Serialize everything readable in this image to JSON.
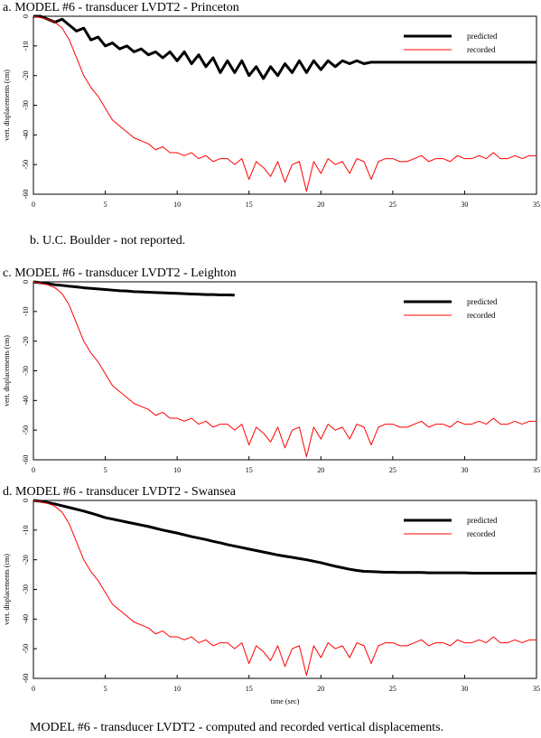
{
  "chart_data": [
    {
      "type": "line",
      "title": "a. MODEL #6 - transducer LVDT2 - Princeton",
      "ylabel": "vert. displacements (cm)",
      "xlim": [
        0,
        35
      ],
      "xticks": [
        0,
        5,
        10,
        15,
        20,
        25,
        30,
        35
      ],
      "ylim": [
        -60,
        0
      ],
      "yticks": [
        0,
        -10,
        -20,
        -30,
        -40,
        -50,
        -60
      ],
      "legend": "upper right",
      "x": [
        0,
        0.5,
        1,
        1.5,
        2,
        2.5,
        3,
        3.5,
        4,
        4.5,
        5,
        5.5,
        6,
        6.5,
        7,
        7.5,
        8,
        8.5,
        9,
        9.5,
        10,
        10.5,
        11,
        11.5,
        12,
        12.5,
        13,
        13.5,
        14,
        14.5,
        15,
        15.5,
        16,
        16.5,
        17,
        17.5,
        18,
        18.5,
        19,
        19.5,
        20,
        20.5,
        21,
        21.5,
        22,
        22.5,
        23,
        23.5,
        24,
        24.5,
        25,
        25.5,
        26,
        26.5,
        27,
        27.5,
        28,
        28.5,
        29,
        29.5,
        30,
        30.5,
        31,
        31.5,
        32,
        32.5,
        33,
        33.5,
        34,
        34.5,
        35
      ],
      "series": [
        {
          "name": "predicted",
          "color": "#000000",
          "linewidth": 3,
          "values": [
            0,
            0,
            -1,
            -2,
            -1,
            -3,
            -5,
            -4,
            -8,
            -7,
            -10,
            -9,
            -11,
            -10,
            -12,
            -11,
            -13,
            -12,
            -14,
            -12,
            -15,
            -12,
            -16,
            -13,
            -17,
            -14,
            -19,
            -15,
            -19,
            -15,
            -20,
            -17,
            -21,
            -17,
            -20,
            -16,
            -19,
            -15,
            -19,
            -15,
            -18,
            -15,
            -17,
            -15,
            -16,
            -15,
            -16,
            -15.5,
            -15.5,
            -15.5,
            -15.5,
            -15.5,
            -15.5,
            -15.5,
            -15.5,
            -15.5,
            -15.5,
            -15.5,
            -15.5,
            -15.5,
            -15.5,
            -15.5,
            -15.5,
            -15.5,
            -15.5,
            -15.5,
            -15.5,
            -15.5,
            -15.5,
            -15.5,
            -15.5
          ]
        },
        {
          "name": "recorded",
          "color": "#ff0000",
          "linewidth": 1,
          "values": [
            0,
            -0.5,
            -1,
            -2,
            -4,
            -8,
            -14,
            -20,
            -24,
            -27,
            -31,
            -35,
            -37,
            -39,
            -41,
            -42,
            -43,
            -45,
            -44,
            -46,
            -46,
            -47,
            -46,
            -48,
            -47,
            -49,
            -48,
            -48,
            -50,
            -48,
            -55,
            -49,
            -51,
            -54,
            -49,
            -56,
            -50,
            -49,
            -59,
            -49,
            -53,
            -48,
            -50,
            -49,
            -53,
            -48,
            -49,
            -55,
            -49,
            -48,
            -48,
            -49,
            -49,
            -48,
            -47,
            -49,
            -48,
            -48,
            -49,
            -47,
            -48,
            -48,
            -47,
            -48,
            -46,
            -48,
            -48,
            -47,
            -48,
            -47,
            -47
          ]
        }
      ]
    },
    {
      "type": "line",
      "title": "c. MODEL #6 - transducer LVDT2 - Leighton",
      "ylabel": "vert. displacements (cm)",
      "xlim": [
        0,
        35
      ],
      "xticks": [
        0,
        5,
        10,
        15,
        20,
        25,
        30,
        35
      ],
      "ylim": [
        -60,
        0
      ],
      "yticks": [
        0,
        -10,
        -20,
        -30,
        -40,
        -50,
        -60
      ],
      "legend": "upper right",
      "x": [
        0,
        0.5,
        1,
        1.5,
        2,
        2.5,
        3,
        3.5,
        4,
        4.5,
        5,
        5.5,
        6,
        6.5,
        7,
        7.5,
        8,
        8.5,
        9,
        9.5,
        10,
        10.5,
        11,
        11.5,
        12,
        12.5,
        13,
        13.5,
        14,
        14.5,
        15,
        15.5,
        16,
        16.5,
        17,
        17.5,
        18,
        18.5,
        19,
        19.5,
        20,
        20.5,
        21,
        21.5,
        22,
        22.5,
        23,
        23.5,
        24,
        24.5,
        25,
        25.5,
        26,
        26.5,
        27,
        27.5,
        28,
        28.5,
        29,
        29.5,
        30,
        30.5,
        31,
        31.5,
        32,
        32.5,
        33,
        33.5,
        34,
        34.5,
        35
      ],
      "series": [
        {
          "name": "predicted",
          "color": "#000000",
          "linewidth": 3,
          "values": [
            0,
            -0.3,
            -0.6,
            -1,
            -1.2,
            -1.5,
            -1.7,
            -2,
            -2.2,
            -2.4,
            -2.6,
            -2.8,
            -3,
            -3.1,
            -3.3,
            -3.4,
            -3.5,
            -3.6,
            -3.7,
            -3.8,
            -3.9,
            -4,
            -4.1,
            -4.2,
            -4.3,
            -4.3,
            -4.4,
            -4.4,
            -4.5,
            null,
            null,
            null,
            null,
            null,
            null,
            null,
            null,
            null,
            null,
            null,
            null,
            null,
            null,
            null,
            null,
            null,
            null,
            null,
            null,
            null,
            null,
            null,
            null,
            null,
            null,
            null,
            null,
            null,
            null,
            null,
            null,
            null,
            null,
            null,
            null,
            null,
            null,
            null,
            null,
            null,
            null
          ]
        },
        {
          "name": "recorded",
          "color": "#ff0000",
          "linewidth": 1,
          "values": [
            0,
            -0.5,
            -1,
            -2,
            -4,
            -8,
            -14,
            -20,
            -24,
            -27,
            -31,
            -35,
            -37,
            -39,
            -41,
            -42,
            -43,
            -45,
            -44,
            -46,
            -46,
            -47,
            -46,
            -48,
            -47,
            -49,
            -48,
            -48,
            -50,
            -48,
            -55,
            -49,
            -51,
            -54,
            -49,
            -56,
            -50,
            -49,
            -59,
            -49,
            -53,
            -48,
            -50,
            -49,
            -53,
            -48,
            -49,
            -55,
            -49,
            -48,
            -48,
            -49,
            -49,
            -48,
            -47,
            -49,
            -48,
            -48,
            -49,
            -47,
            -48,
            -48,
            -47,
            -48,
            -46,
            -48,
            -48,
            -47,
            -48,
            -47,
            -47
          ]
        }
      ]
    },
    {
      "type": "line",
      "title": "d. MODEL #6 - transducer LVDT2 - Swansea",
      "ylabel": "vert. displacements (cm)",
      "xlabel": "time (sec)",
      "xlim": [
        0,
        35
      ],
      "xticks": [
        0,
        5,
        10,
        15,
        20,
        25,
        30,
        35
      ],
      "ylim": [
        -60,
        0
      ],
      "yticks": [
        0,
        -10,
        -20,
        -30,
        -40,
        -50,
        -60
      ],
      "legend": "upper right",
      "x": [
        0,
        0.5,
        1,
        1.5,
        2,
        2.5,
        3,
        3.5,
        4,
        4.5,
        5,
        5.5,
        6,
        6.5,
        7,
        7.5,
        8,
        8.5,
        9,
        9.5,
        10,
        10.5,
        11,
        11.5,
        12,
        12.5,
        13,
        13.5,
        14,
        14.5,
        15,
        15.5,
        16,
        16.5,
        17,
        17.5,
        18,
        18.5,
        19,
        19.5,
        20,
        20.5,
        21,
        21.5,
        22,
        22.5,
        23,
        23.5,
        24,
        24.5,
        25,
        25.5,
        26,
        26.5,
        27,
        27.5,
        28,
        28.5,
        29,
        29.5,
        30,
        30.5,
        31,
        31.5,
        32,
        32.5,
        33,
        33.5,
        34,
        34.5,
        35
      ],
      "series": [
        {
          "name": "predicted",
          "color": "#000000",
          "linewidth": 3,
          "values": [
            0,
            -0.3,
            -0.7,
            -1.2,
            -1.8,
            -2.4,
            -3,
            -3.6,
            -4.3,
            -5,
            -5.8,
            -6.3,
            -6.8,
            -7.3,
            -7.8,
            -8.3,
            -8.8,
            -9.4,
            -10,
            -10.5,
            -11,
            -11.6,
            -12.2,
            -12.7,
            -13.2,
            -13.8,
            -14.3,
            -14.9,
            -15.4,
            -15.9,
            -16.4,
            -16.9,
            -17.4,
            -17.9,
            -18.4,
            -18.8,
            -19.2,
            -19.6,
            -20,
            -20.5,
            -21,
            -21.6,
            -22.2,
            -22.7,
            -23.2,
            -23.6,
            -23.9,
            -24,
            -24.1,
            -24.2,
            -24.2,
            -24.3,
            -24.3,
            -24.3,
            -24.3,
            -24.4,
            -24.4,
            -24.4,
            -24.4,
            -24.4,
            -24.4,
            -24.5,
            -24.5,
            -24.5,
            -24.5,
            -24.5,
            -24.5,
            -24.5,
            -24.5,
            -24.5,
            -24.5
          ]
        },
        {
          "name": "recorded",
          "color": "#ff0000",
          "linewidth": 1,
          "values": [
            0,
            -0.5,
            -1,
            -2,
            -4,
            -8,
            -14,
            -20,
            -24,
            -27,
            -31,
            -35,
            -37,
            -39,
            -41,
            -42,
            -43,
            -45,
            -44,
            -46,
            -46,
            -47,
            -46,
            -48,
            -47,
            -49,
            -48,
            -48,
            -50,
            -48,
            -55,
            -49,
            -51,
            -54,
            -49,
            -56,
            -50,
            -49,
            -59,
            -49,
            -53,
            -48,
            -50,
            -49,
            -53,
            -48,
            -49,
            -55,
            -49,
            -48,
            -48,
            -49,
            -49,
            -48,
            -47,
            -49,
            -48,
            -48,
            -49,
            -47,
            -48,
            -48,
            -47,
            -48,
            -46,
            -48,
            -48,
            -47,
            -48,
            -47,
            -47
          ]
        }
      ]
    }
  ],
  "note": "b. U.C. Boulder - not reported.",
  "caption": "MODEL #6 - transducer LVDT2 - computed and recorded vertical displacements."
}
